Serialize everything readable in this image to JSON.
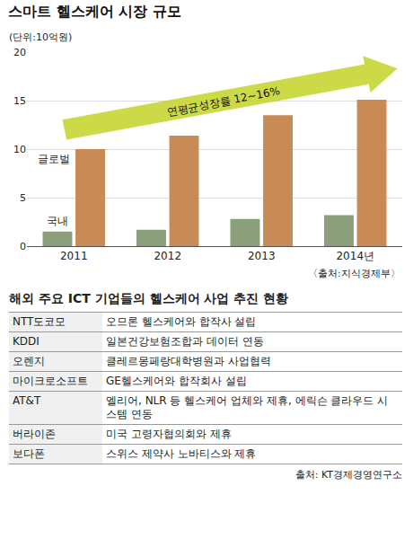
{
  "chart_data": {
    "type": "bar",
    "title": "스마트 헬스케어 시장 규모",
    "subtitle": "(단위:10억원)",
    "categories": [
      "2011",
      "2012",
      "2013",
      "2014년"
    ],
    "series": [
      {
        "name": "국내",
        "color": "#8c9f7b",
        "values": [
          1.5,
          1.7,
          2.8,
          3.2
        ]
      },
      {
        "name": "글로벌",
        "color": "#c98b55",
        "values": [
          10.0,
          11.4,
          13.5,
          15.1
        ]
      }
    ],
    "ylim": [
      0,
      20
    ],
    "yticks": [
      0,
      5,
      10,
      15,
      20
    ],
    "grid": true,
    "annotations": [
      {
        "text": "연평균성장률 12~16%"
      }
    ],
    "source": "〈출처:지식경제부〉"
  },
  "table": {
    "title": "해외 주요 ICT 기업들의 헬스케어 사업 추진 현황",
    "rows": [
      [
        "NTT도코모",
        "오므론 헬스케어와 합작사 설립"
      ],
      [
        "KDDI",
        "일본건강보험조합과 데이터 연동"
      ],
      [
        "오렌지",
        "클레르몽페랑대학병원과 사업협력"
      ],
      [
        "마이크로소프트",
        "GE헬스케어와 합작회사 설립"
      ],
      [
        "AT&T",
        "엘리어, NLR 등 헬스케어 업체와 제휴, 에릭슨 클라우드 시스템 연동"
      ],
      [
        "버라이존",
        "미국 고령자협의회와 제휴"
      ],
      [
        "보다폰",
        "스위스 제약사 노바티스와 제휴"
      ]
    ],
    "source": "출처: KT경제경영연구소"
  }
}
